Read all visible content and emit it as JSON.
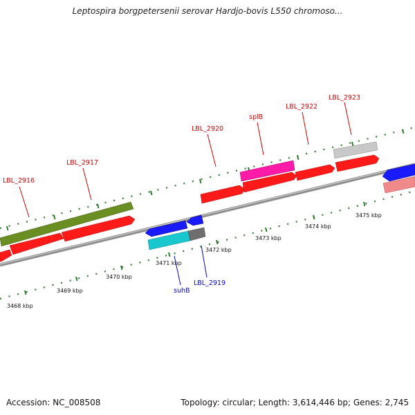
{
  "title": "Leptospira borgpetersenii serovar Hardjo-bovis L550 chromoso...",
  "footer": {
    "accession": "Accession: NC_008508",
    "summary": "Topology: circular; Length: 3,614,446 bp; Genes: 2,745"
  },
  "colors": {
    "forward_gene": "#ff1a1a",
    "reverse_gene": "#1a1aff",
    "olive": "#6b8e23",
    "magenta": "#ff1aa8",
    "grey_gene": "#bdbdbd",
    "cyan": "#19c8cf",
    "dark_grey": "#6e6e6e",
    "pink": "#f08a8a",
    "tick": "#2a7a2a",
    "backbone": "#8e8e8e",
    "forward_label": "#cc0000",
    "reverse_label": "#0000cc"
  },
  "kbp_labels": [
    "3468 kbp",
    "3469 kbp",
    "3470 kbp",
    "3471 kbp",
    "3472 kbp",
    "3473 kbp",
    "3474 kbp",
    "3475 kbp"
  ],
  "gene_labels": {
    "lbl2916": "LBL_2916",
    "lbl2917": "LBL_2917",
    "lbl2920": "LBL_2920",
    "splb": "splB",
    "lbl2922": "LBL_2922",
    "lbl2923": "LBL_2923",
    "suhb": "suhB",
    "lbl2919": "LBL_2919"
  }
}
